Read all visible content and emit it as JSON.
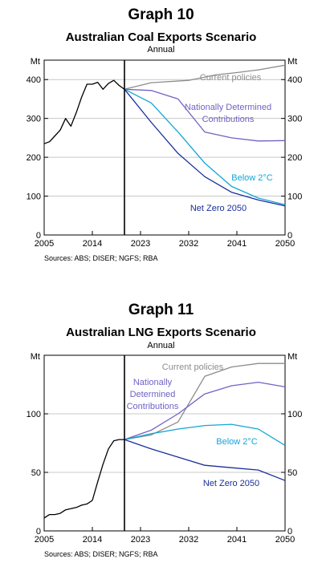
{
  "charts": [
    {
      "graph_number": "Graph 10",
      "title": "Australian Coal Exports Scenario",
      "subtitle": "Annual",
      "sources": "Sources: ABS; DISER; NGFS; RBA",
      "colors": {
        "history": "#000000",
        "current": "#8c8c8c",
        "ndc": "#6f63c4",
        "below2": "#12a6d6",
        "netzero": "#1b2f9b"
      }
    },
    {
      "graph_number": "Graph 11",
      "title": "Australian LNG Exports Scenario",
      "subtitle": "Annual",
      "sources": "Sources: ABS; DISER; NGFS; RBA",
      "colors": {
        "history": "#000000",
        "current": "#8c8c8c",
        "ndc": "#6f63c4",
        "below2": "#12a6d6",
        "netzero": "#1b2f9b"
      }
    }
  ],
  "chart_data": [
    {
      "type": "line",
      "title": "Australian Coal Exports Scenario",
      "subtitle": "Annual",
      "ylabel_left": "Mt",
      "ylabel_right": "Mt",
      "xlim": [
        2005,
        2050
      ],
      "ylim": [
        0,
        450
      ],
      "xticks": [
        "2005",
        "2014",
        "2023",
        "2032",
        "2041",
        "2050"
      ],
      "yticks": [
        "0",
        "100",
        "200",
        "300",
        "400"
      ],
      "vline_x": 2020,
      "grid": true,
      "series": [
        {
          "key": "history",
          "x": [
            2005,
            2006,
            2007,
            2008,
            2009,
            2010,
            2011,
            2012,
            2013,
            2014,
            2015,
            2016,
            2017,
            2018,
            2019,
            2020
          ],
          "values": [
            235,
            240,
            255,
            270,
            300,
            280,
            315,
            355,
            388,
            388,
            393,
            375,
            390,
            398,
            385,
            375
          ]
        },
        {
          "key": "current",
          "name": "Current policies",
          "x": [
            2020,
            2025,
            2032,
            2037,
            2041,
            2045,
            2050
          ],
          "values": [
            375,
            392,
            398,
            412,
            418,
            425,
            437
          ]
        },
        {
          "key": "ndc",
          "name": "Nationally Determined Contributions",
          "x": [
            2020,
            2025,
            2030,
            2035,
            2040,
            2045,
            2050
          ],
          "values": [
            375,
            372,
            350,
            265,
            250,
            242,
            243
          ]
        },
        {
          "key": "below2",
          "name": "Below 2°C",
          "x": [
            2020,
            2025,
            2030,
            2035,
            2040,
            2045,
            2050
          ],
          "values": [
            375,
            340,
            265,
            185,
            125,
            95,
            78
          ]
        },
        {
          "key": "netzero",
          "name": "Net Zero 2050",
          "x": [
            2020,
            2025,
            2030,
            2035,
            2040,
            2045,
            2050
          ],
          "values": [
            375,
            290,
            210,
            150,
            110,
            90,
            75
          ]
        }
      ],
      "series_labels": [
        "Current policies",
        "Nationally Determined",
        "Contributions",
        "Below 2°C",
        "Net Zero 2050"
      ]
    },
    {
      "type": "line",
      "title": "Australian LNG Exports Scenario",
      "subtitle": "Annual",
      "ylabel_left": "Mt",
      "ylabel_right": "Mt",
      "xlim": [
        2005,
        2050
      ],
      "ylim": [
        0,
        150
      ],
      "xticks": [
        "2005",
        "2014",
        "2023",
        "2032",
        "2041",
        "2050"
      ],
      "yticks": [
        "0",
        "50",
        "100"
      ],
      "vline_x": 2020,
      "grid": true,
      "series": [
        {
          "key": "history",
          "x": [
            2005,
            2006,
            2007,
            2008,
            2009,
            2010,
            2011,
            2012,
            2013,
            2014,
            2015,
            2016,
            2017,
            2018,
            2019,
            2020
          ],
          "values": [
            11,
            14,
            14,
            15,
            18,
            19,
            20,
            22,
            23,
            26,
            42,
            57,
            70,
            77,
            78,
            78
          ]
        },
        {
          "key": "current",
          "name": "Current policies",
          "x": [
            2020,
            2025,
            2030,
            2035,
            2040,
            2045,
            2050
          ],
          "values": [
            78,
            82,
            93,
            132,
            140,
            143,
            143
          ]
        },
        {
          "key": "ndc",
          "name": "Nationally Determined Contributions",
          "x": [
            2020,
            2025,
            2030,
            2035,
            2040,
            2045,
            2050
          ],
          "values": [
            78,
            86,
            100,
            117,
            124,
            127,
            123
          ]
        },
        {
          "key": "below2",
          "name": "Below 2°C",
          "x": [
            2020,
            2025,
            2030,
            2035,
            2040,
            2045,
            2050
          ],
          "values": [
            78,
            83,
            87,
            90,
            91,
            87,
            73
          ]
        },
        {
          "key": "netzero",
          "name": "Net Zero 2050",
          "x": [
            2020,
            2025,
            2030,
            2035,
            2040,
            2045,
            2050
          ],
          "values": [
            78,
            70,
            63,
            56,
            54,
            52,
            43
          ]
        }
      ],
      "series_labels": [
        "Current policies",
        "Nationally",
        "Determined",
        "Contributions",
        "Below 2°C",
        "Net Zero 2050"
      ]
    }
  ]
}
